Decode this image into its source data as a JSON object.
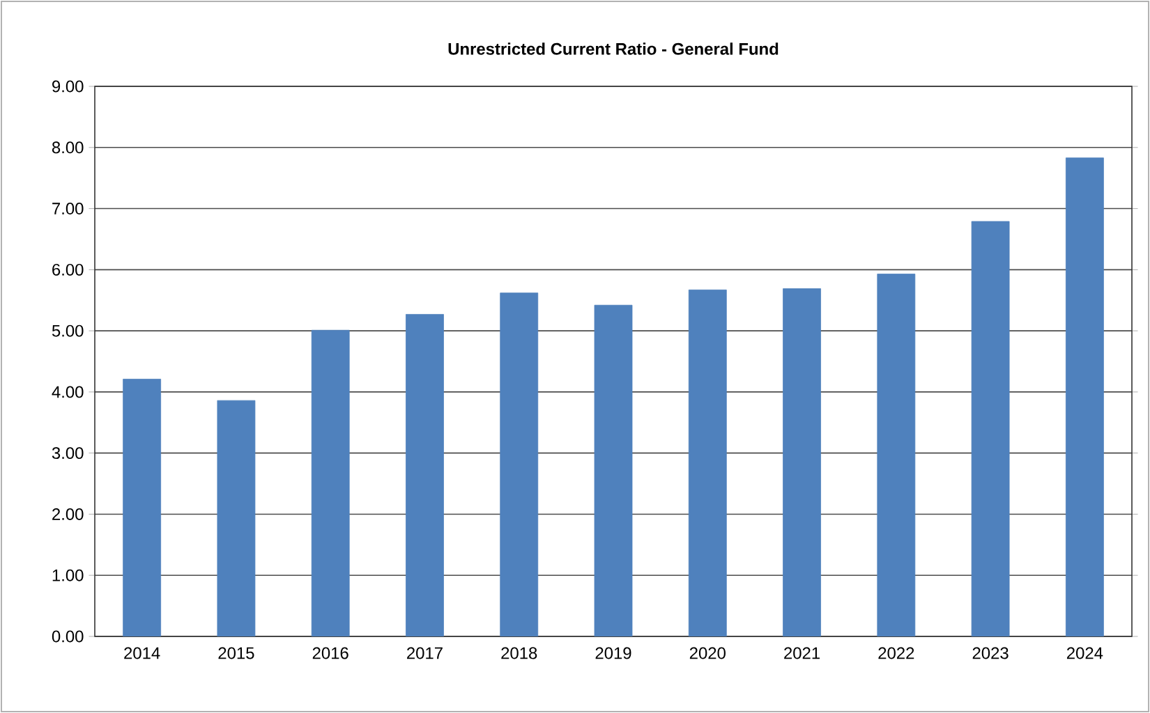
{
  "chart_data": {
    "type": "bar",
    "title": "Unrestricted Current Ratio - General Fund",
    "categories": [
      "2014",
      "2015",
      "2016",
      "2017",
      "2018",
      "2019",
      "2020",
      "2021",
      "2022",
      "2023",
      "2024"
    ],
    "values": [
      4.21,
      3.86,
      5.01,
      5.27,
      5.62,
      5.42,
      5.67,
      5.69,
      5.93,
      6.79,
      7.83
    ],
    "color": "#4f81bd",
    "ylim": [
      0,
      9
    ],
    "yticks": [
      {
        "value": 0,
        "label": "0.00"
      },
      {
        "value": 1,
        "label": "1.00"
      },
      {
        "value": 2,
        "label": "2.00"
      },
      {
        "value": 3,
        "label": "3.00"
      },
      {
        "value": 4,
        "label": "4.00"
      },
      {
        "value": 5,
        "label": "5.00"
      },
      {
        "value": 6,
        "label": "6.00"
      },
      {
        "value": 7,
        "label": "7.00"
      },
      {
        "value": 8,
        "label": "8.00"
      },
      {
        "value": 9,
        "label": "9.00"
      }
    ],
    "grid": "y"
  }
}
